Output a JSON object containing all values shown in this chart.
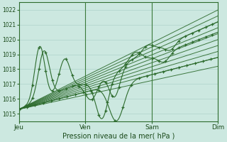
{
  "title": "",
  "xlabel": "Pression niveau de la mer( hPa )",
  "bg_color": "#cce8e0",
  "grid_color": "#a8cec6",
  "line_color": "#2d6b2d",
  "ylim": [
    1014.5,
    1022.5
  ],
  "xlim": [
    0,
    96
  ],
  "yticks": [
    1015,
    1016,
    1017,
    1018,
    1019,
    1020,
    1021,
    1022
  ],
  "xtick_labels": [
    "Jeu",
    "Ven",
    "Sam",
    "Dim"
  ],
  "xtick_positions": [
    0,
    32,
    64,
    96
  ],
  "day_lines": [
    32,
    64
  ]
}
